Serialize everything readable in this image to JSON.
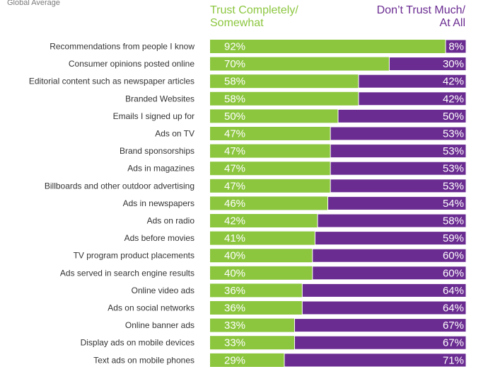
{
  "header": {
    "subtitle": "Global Average",
    "legend_trust_line1": "Trust Completely/",
    "legend_trust_line2": "Somewhat",
    "legend_distrust_line1": "Don’t Trust Much/",
    "legend_distrust_line2": "At All"
  },
  "colors": {
    "trust": "#8cc63f",
    "distrust": "#6a2c91"
  },
  "chart_data": {
    "type": "bar",
    "orientation": "horizontal",
    "stacked": true,
    "categories": [
      "Recommendations from people I know",
      "Consumer opinions posted online",
      "Editorial content such as newspaper articles",
      "Branded Websites",
      "Emails I signed up for",
      "Ads on TV",
      "Brand sponsorships",
      "Ads in magazines",
      "Billboards and other outdoor advertising",
      "Ads in newspapers",
      "Ads on radio",
      "Ads before movies",
      "TV program product placements",
      "Ads served in search engine results",
      "Online video ads",
      "Ads on social networks",
      "Online banner ads",
      "Display ads on mobile devices",
      "Text ads on mobile phones"
    ],
    "series": [
      {
        "name": "Trust Completely/ Somewhat",
        "values": [
          92,
          70,
          58,
          58,
          50,
          47,
          47,
          47,
          47,
          46,
          42,
          41,
          40,
          40,
          36,
          36,
          33,
          33,
          29
        ]
      },
      {
        "name": "Don’t Trust Much/ At All",
        "values": [
          8,
          30,
          42,
          42,
          50,
          53,
          53,
          53,
          53,
          54,
          58,
          59,
          60,
          60,
          64,
          64,
          67,
          67,
          71
        ]
      }
    ],
    "xlim": [
      0,
      100
    ],
    "title": "",
    "xlabel": "",
    "ylabel": "",
    "grid": false
  }
}
